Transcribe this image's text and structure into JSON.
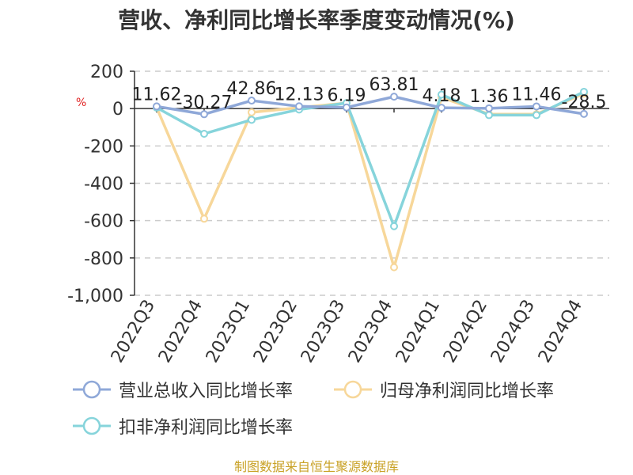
{
  "title": "营收、净利同比增长率季度变动情况(%)",
  "unit_label": "%",
  "source": "制图数据来自恒生聚源数据库",
  "chart_data": {
    "type": "line",
    "title": "营收、净利同比增长率季度变动情况(%)",
    "xlabel": "",
    "ylabel": "%",
    "categories": [
      "2022Q3",
      "2022Q4",
      "2023Q1",
      "2023Q2",
      "2023Q3",
      "2023Q4",
      "2024Q1",
      "2024Q2",
      "2024Q3",
      "2024Q4"
    ],
    "ylim": [
      -1000,
      200
    ],
    "yticks": [
      200,
      0,
      -200,
      -400,
      -600,
      -800,
      -1000
    ],
    "ytick_labels": [
      "200",
      "0",
      "-200",
      "-400",
      "-600",
      "-800",
      "-1,000"
    ],
    "grid": true,
    "legend_position": "bottom",
    "series": [
      {
        "name": "营业总收入同比增长率",
        "color": "#8fa8d8",
        "values": [
          11.62,
          -30.27,
          42.86,
          12.13,
          6.19,
          63.81,
          4.18,
          1.36,
          11.46,
          -28.5
        ],
        "labels": [
          "11.62",
          "-30.27",
          "42.86",
          "12.13",
          "6.19",
          "63.81",
          "4.18",
          "1.36",
          "11.46",
          "-28.5"
        ]
      },
      {
        "name": "归母净利润同比增长率",
        "color": "#f7d79a",
        "values": [
          5,
          -590,
          -20,
          5,
          30,
          -850,
          60,
          -30,
          -30,
          80
        ]
      },
      {
        "name": "扣非净利润同比增长率",
        "color": "#86d4db",
        "values": [
          5,
          -135,
          -60,
          -5,
          30,
          -630,
          75,
          -35,
          -35,
          90
        ]
      }
    ]
  }
}
